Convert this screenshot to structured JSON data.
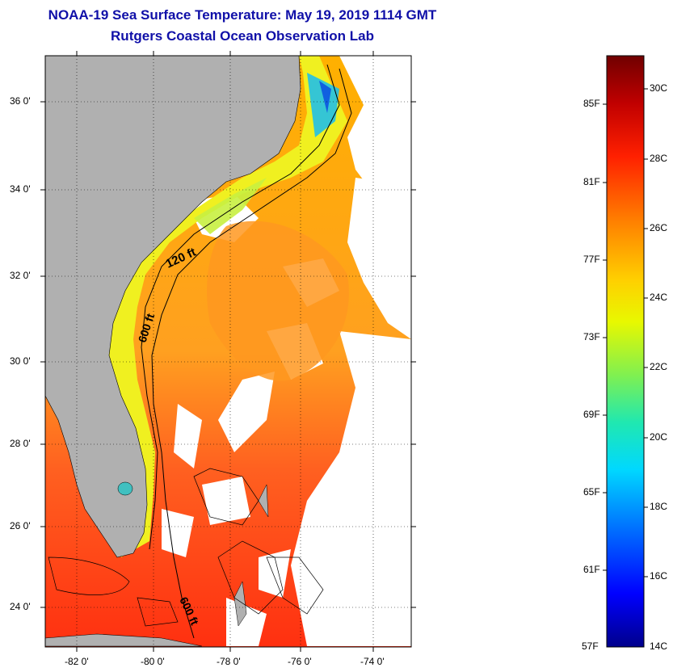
{
  "title": {
    "line1": "NOAA-19 Sea Surface Temperature:  May 19, 2019 1114 GMT",
    "line2": "Rutgers Coastal Ocean Observation Lab"
  },
  "map": {
    "lat_labels": [
      "36 0'",
      "34 0'",
      "32 0'",
      "30 0'",
      "28 0'",
      "26 0'",
      "24 0'"
    ],
    "lon_labels": [
      "-82 0'",
      "-80 0'",
      "-78 0'",
      "-76 0'",
      "-74 0'"
    ],
    "isobath_labels": [
      "120 ft",
      "600 ft",
      "600 ft"
    ],
    "colors": {
      "land": "#b0b0b0",
      "cloud": "#ffffff"
    }
  },
  "colorbar": {
    "fahrenheit_labels": [
      "85F",
      "81F",
      "77F",
      "73F",
      "69F",
      "65F",
      "61F",
      "57F"
    ],
    "celsius_labels": [
      "30C",
      "28C",
      "26C",
      "24C",
      "22C",
      "20C",
      "18C",
      "16C",
      "14C"
    ],
    "colors": [
      "#00008b",
      "#0000ff",
      "#0090ff",
      "#00e8f0",
      "#40e0a0",
      "#a8f040",
      "#ffff00",
      "#ffc000",
      "#ff8000",
      "#ff2000",
      "#c00000",
      "#700000"
    ]
  }
}
